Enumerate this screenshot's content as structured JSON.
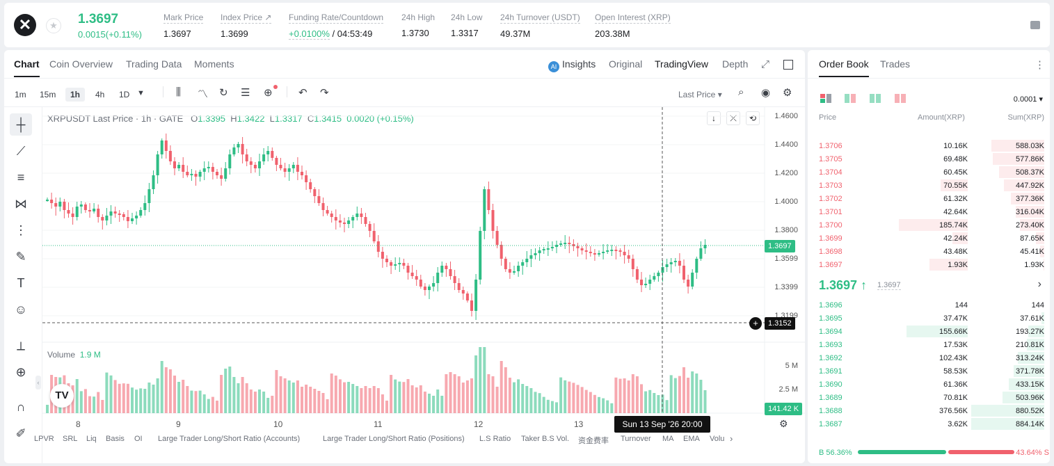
{
  "header": {
    "symbol_logo": "✕",
    "last_price": "1.3697",
    "change": "0.0015(+0.11%)",
    "stats": [
      {
        "label": "Mark Price",
        "value": "1.3697"
      },
      {
        "label": "Index Price ↗",
        "value": "1.3699"
      },
      {
        "label": "Funding Rate/Countdown",
        "value": "+0.0100%",
        "value2": "/ 04:53:49"
      },
      {
        "label": "24h High",
        "value": "1.3730"
      },
      {
        "label": "24h Low",
        "value": "1.3317"
      },
      {
        "label": "24h Turnover (USDT)",
        "value": "49.37M"
      },
      {
        "label": "Open Interest (XRP)",
        "value": "203.38M"
      }
    ]
  },
  "chart_tabs": [
    "Chart",
    "Coin Overview",
    "Trading Data",
    "Moments"
  ],
  "view_tabs": {
    "insights": "Insights",
    "original": "Original",
    "tradingview": "TradingView",
    "depth": "Depth"
  },
  "timeframes": [
    "1m",
    "15m",
    "1h",
    "4h",
    "1D"
  ],
  "price_type": "Last Price ▾",
  "ohlc": {
    "title": "XRPUSDT Last Price · 1h · GATE",
    "o_label": "O",
    "o": "1.3395",
    "h_label": "H",
    "h": "1.3422",
    "l_label": "L",
    "l": "1.3317",
    "c_label": "C",
    "c": "1.3415",
    "chg": "0.0020 (+0.15%)"
  },
  "price_axis": [
    "1.4600",
    "1.4400",
    "1.4200",
    "1.4000",
    "1.3800",
    "1.3599",
    "1.3399",
    "1.3199"
  ],
  "price_tag": "1.3697",
  "crosshair_price": "1.3152",
  "volume": {
    "label": "Volume",
    "value": "1.9 M",
    "axis": [
      "5 M",
      "2.5 M"
    ],
    "tag": "141.42 K"
  },
  "date_axis": [
    "8",
    "9",
    "10",
    "11",
    "12",
    "13"
  ],
  "crosshair_time": "Sun 13 Sep '26   20:00",
  "indicators": [
    "LPVR",
    "SRL",
    "Liq",
    "Basis",
    "OI",
    "Large Trader Long/Short Ratio (Accounts)",
    "Large Trader Long/Short Ratio (Positions)",
    "L.S Ratio",
    "Taker B.S Vol.",
    "资金费率",
    "Turnover",
    "MA",
    "EMA",
    "Volu"
  ],
  "orderbook": {
    "tabs": [
      "Order Book",
      "Trades"
    ],
    "precision": "0.0001 ▾",
    "headers": [
      "Price",
      "Amount(XRP)",
      "Sum(XRP)"
    ],
    "asks": [
      {
        "price": "1.3706",
        "amount": "10.16K",
        "sum": "588.03K",
        "depth": 0.72,
        "amt_hl": 0
      },
      {
        "price": "1.3705",
        "amount": "69.48K",
        "sum": "577.86K",
        "depth": 0.7,
        "amt_hl": 0
      },
      {
        "price": "1.3704",
        "amount": "60.45K",
        "sum": "508.37K",
        "depth": 0.62,
        "amt_hl": 0
      },
      {
        "price": "1.3703",
        "amount": "70.55K",
        "sum": "447.92K",
        "depth": 0.55,
        "amt_hl": 0.35
      },
      {
        "price": "1.3702",
        "amount": "61.32K",
        "sum": "377.36K",
        "depth": 0.46,
        "amt_hl": 0
      },
      {
        "price": "1.3701",
        "amount": "42.64K",
        "sum": "316.04K",
        "depth": 0.39,
        "amt_hl": 0
      },
      {
        "price": "1.3700",
        "amount": "185.74K",
        "sum": "273.40K",
        "depth": 0.33,
        "amt_hl": 0.9
      },
      {
        "price": "1.3699",
        "amount": "42.24K",
        "sum": "87.65K",
        "depth": 0.11,
        "amt_hl": 0.2
      },
      {
        "price": "1.3698",
        "amount": "43.48K",
        "sum": "45.41K",
        "depth": 0.06,
        "amt_hl": 0
      },
      {
        "price": "1.3697",
        "amount": "1.93K",
        "sum": "1.93K",
        "depth": 0.01,
        "amt_hl": 0.5
      }
    ],
    "mid_price": "1.3697 ↑",
    "mark_price": "1.3697",
    "bids": [
      {
        "price": "1.3696",
        "amount": "144",
        "sum": "144",
        "depth": 0.0,
        "amt_hl": 0
      },
      {
        "price": "1.3695",
        "amount": "37.47K",
        "sum": "37.61K",
        "depth": 0.04,
        "amt_hl": 0
      },
      {
        "price": "1.3694",
        "amount": "155.66K",
        "sum": "193.27K",
        "depth": 0.22,
        "amt_hl": 0.8
      },
      {
        "price": "1.3693",
        "amount": "17.53K",
        "sum": "210.81K",
        "depth": 0.24,
        "amt_hl": 0
      },
      {
        "price": "1.3692",
        "amount": "102.43K",
        "sum": "313.24K",
        "depth": 0.36,
        "amt_hl": 0
      },
      {
        "price": "1.3691",
        "amount": "58.53K",
        "sum": "371.78K",
        "depth": 0.42,
        "amt_hl": 0
      },
      {
        "price": "1.3690",
        "amount": "61.36K",
        "sum": "433.15K",
        "depth": 0.49,
        "amt_hl": 0
      },
      {
        "price": "1.3689",
        "amount": "70.81K",
        "sum": "503.96K",
        "depth": 0.57,
        "amt_hl": 0
      },
      {
        "price": "1.3688",
        "amount": "376.56K",
        "sum": "880.52K",
        "depth": 1.0,
        "amt_hl": 0
      },
      {
        "price": "1.3687",
        "amount": "3.62K",
        "sum": "884.14K",
        "depth": 1.0,
        "amt_hl": 0
      }
    ],
    "buy_ratio": "B 56.36%",
    "sell_ratio": "43.64% S",
    "buy_fraction": 0.5636
  },
  "colors": {
    "up": "#2ebd85",
    "down": "#f0616d"
  }
}
